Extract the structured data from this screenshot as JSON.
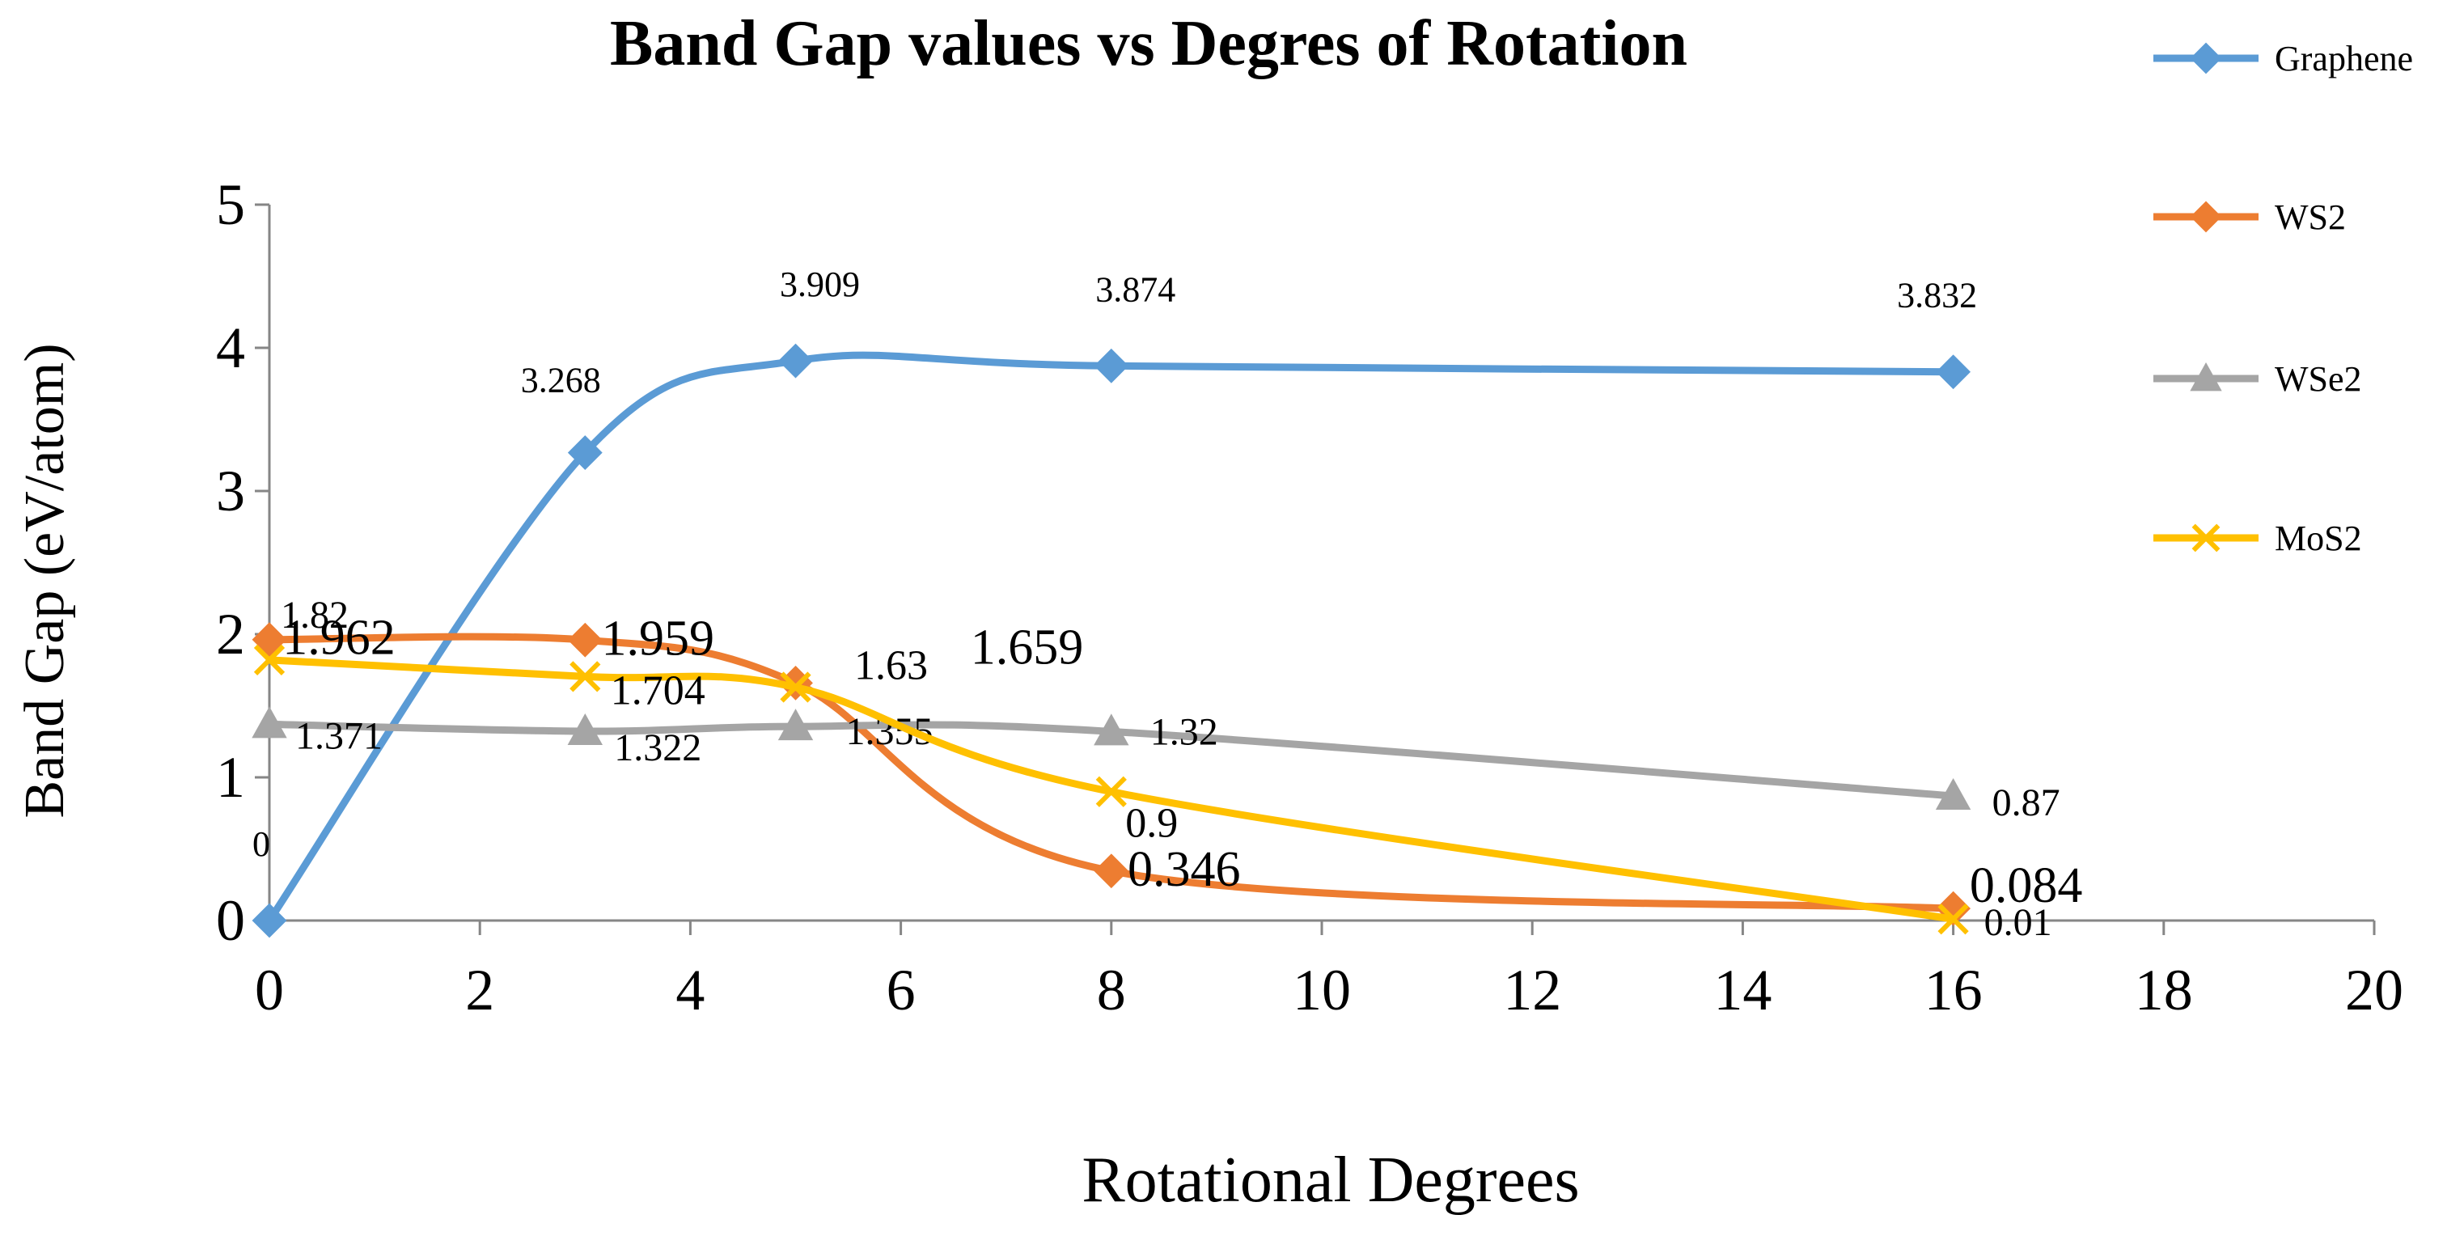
{
  "chart_data": {
    "type": "line",
    "title": "Band Gap values vs Degres of Rotation",
    "xlabel": "Rotational Degrees",
    "ylabel": "Band Gap (eV/atom)",
    "xlim": [
      0,
      20
    ],
    "ylim": [
      0,
      5
    ],
    "xticks": [
      0,
      2,
      4,
      6,
      8,
      10,
      12,
      14,
      16,
      18,
      20
    ],
    "yticks": [
      0,
      1,
      2,
      3,
      4,
      5
    ],
    "grid": false,
    "legend_position": "right",
    "series": [
      {
        "name": "Graphene",
        "color": "#5B9BD5",
        "marker": "diamond",
        "x": [
          0,
          3,
          5,
          8,
          16
        ],
        "values": [
          0,
          3.268,
          3.909,
          3.874,
          3.832
        ],
        "labels": [
          "0",
          "3.268",
          "3.909",
          "3.874",
          "3.832"
        ]
      },
      {
        "name": "WS2",
        "color": "#ED7D31",
        "marker": "diamond",
        "x": [
          0,
          3,
          5,
          8,
          16
        ],
        "values": [
          1.962,
          1.959,
          1.659,
          0.346,
          0.084
        ],
        "labels": [
          "1.962",
          "1.959",
          "1.659",
          "0.346",
          "0.084"
        ]
      },
      {
        "name": "WSe2",
        "color": "#A5A5A5",
        "marker": "triangle",
        "x": [
          0,
          3,
          5,
          8,
          16
        ],
        "values": [
          1.371,
          1.322,
          1.355,
          1.32,
          0.87
        ],
        "labels": [
          "1.371",
          "1.322",
          "1.355",
          "1.32",
          "0.87"
        ]
      },
      {
        "name": "MoS2",
        "color": "#FFC000",
        "marker": "x",
        "x": [
          0,
          3,
          5,
          8,
          16
        ],
        "values": [
          1.82,
          1.704,
          1.63,
          0.9,
          0.01
        ],
        "labels": [
          "1.82",
          "1.704",
          "1.63",
          "0.9",
          "0.01"
        ]
      }
    ]
  }
}
